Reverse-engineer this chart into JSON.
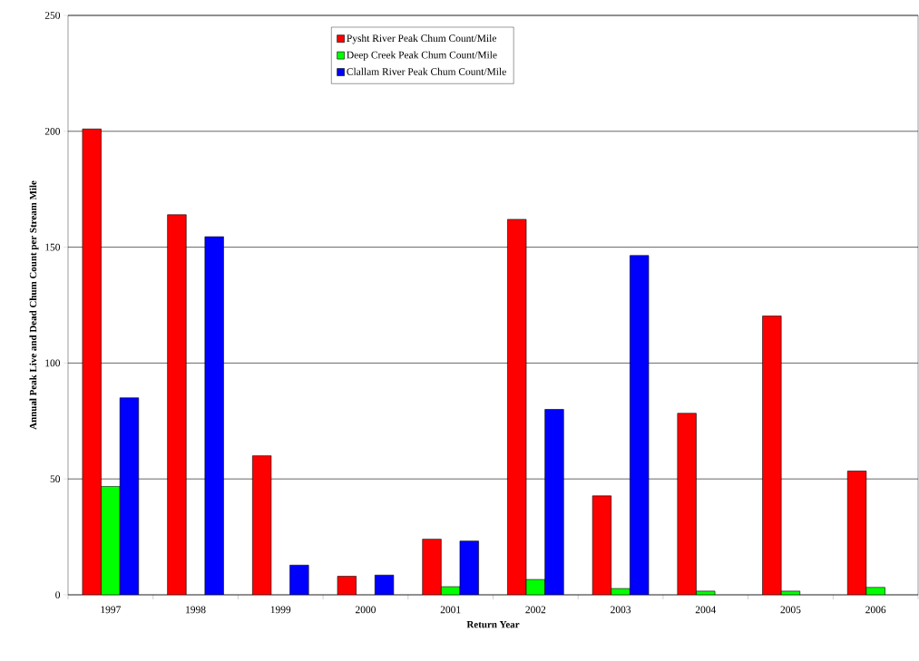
{
  "chart_data": {
    "type": "bar",
    "xlabel": "Return Year",
    "ylabel": "Annual Peak Live and Dead Chum Count per Stream Mile",
    "categories": [
      "1997",
      "1998",
      "1999",
      "2000",
      "2001",
      "2002",
      "2003",
      "2004",
      "2005",
      "2006"
    ],
    "series": [
      {
        "name": "Pysht River Peak Chum Count/Mile",
        "color": "#ff0000",
        "values": [
          201,
          164,
          60,
          8,
          24,
          162,
          42.7,
          78.3,
          120.3,
          53.4
        ]
      },
      {
        "name": "Deep Creek Peak Chum Count/Mile",
        "color": "#00ff00",
        "values": [
          46.8,
          null,
          null,
          null,
          3.5,
          6.6,
          2.7,
          1.6,
          1.6,
          3.2
        ]
      },
      {
        "name": "Clallam River Peak Chum Count/Mile",
        "color": "#0000ff",
        "values": [
          85,
          154.5,
          12.8,
          8.5,
          23.2,
          80,
          146.4,
          null,
          null,
          null
        ]
      }
    ],
    "ylim": [
      0,
      250
    ],
    "yticks": [
      0,
      50,
      100,
      150,
      200,
      250
    ],
    "grid": "y",
    "legend": "top"
  }
}
